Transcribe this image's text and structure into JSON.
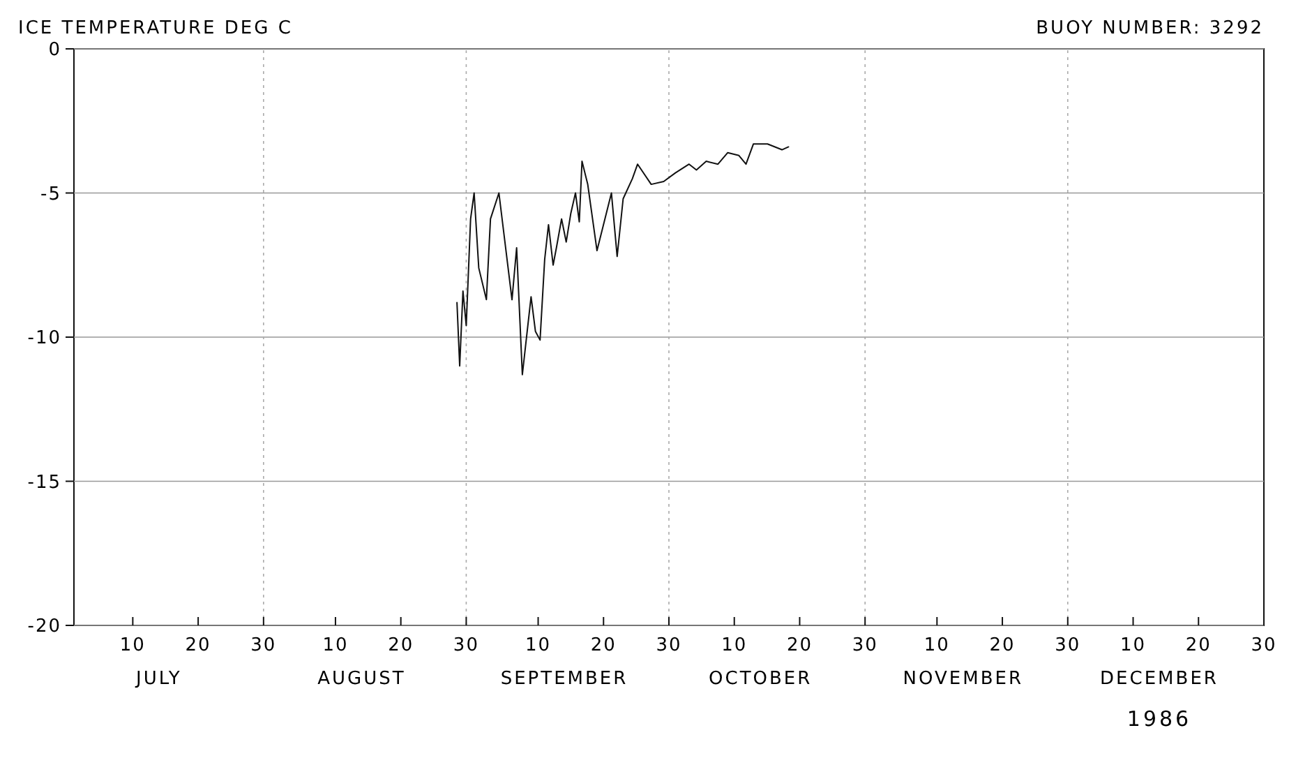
{
  "chart_data": {
    "type": "line",
    "title": "ICE TEMPERATURE DEG C",
    "subtitle": "BUOY NUMBER: 3292",
    "xlabel": "1986",
    "x": [
      "1986-08-28T14:00",
      "1986-08-29T00:00",
      "1986-08-29T12:00",
      "1986-08-30T00:00",
      "1986-08-30T16:00",
      "1986-08-31T05:00",
      "1986-08-31T22:00",
      "1986-09-02T02:00",
      "1986-09-02T17:00",
      "1986-09-04T00:00",
      "1986-09-06T00:00",
      "1986-09-06T17:00",
      "1986-09-07T14:00",
      "1986-09-08T22:00",
      "1986-09-09T14:00",
      "1986-09-10T07:00",
      "1986-09-11T00:00",
      "1986-09-11T14:00",
      "1986-09-12T07:00",
      "1986-09-12T19:00",
      "1986-09-13T14:00",
      "1986-09-14T07:00",
      "1986-09-15T00:00",
      "1986-09-15T17:00",
      "1986-09-16T07:00",
      "1986-09-16T17:00",
      "1986-09-17T14:00",
      "1986-09-19T00:00",
      "1986-09-21T05:00",
      "1986-09-22T02:00",
      "1986-09-23T00:00",
      "1986-09-24T10:00",
      "1986-09-25T05:00",
      "1986-09-27T07:00",
      "1986-09-29T05:00",
      "1986-10-01T00:00",
      "1986-10-03T02:00",
      "1986-10-04T05:00",
      "1986-10-05T17:00",
      "1986-10-07T12:00",
      "1986-10-09T00:00",
      "1986-10-10T17:00",
      "1986-10-11T19:00",
      "1986-10-12T22:00",
      "1986-10-15T02:00",
      "1986-10-17T07:00",
      "1986-10-18T07:00"
    ],
    "series": [
      {
        "color": "#111111",
        "values": [
          -8.8,
          -11.0,
          -8.4,
          -9.6,
          -5.9,
          -5.0,
          -7.6,
          -8.7,
          -5.9,
          -5.0,
          -8.7,
          -6.9,
          -11.3,
          -8.6,
          -9.8,
          -10.1,
          -7.3,
          -6.1,
          -7.5,
          -6.9,
          -5.9,
          -6.7,
          -5.7,
          -5.0,
          -6.0,
          -3.9,
          -4.7,
          -7.0,
          -5.0,
          -7.2,
          -5.2,
          -4.5,
          -4.0,
          -4.7,
          -4.6,
          -4.3,
          -4.0,
          -4.2,
          -3.9,
          -4.0,
          -3.6,
          -3.7,
          -4.0,
          -3.3,
          -3.3,
          -3.5,
          -3.4
        ]
      }
    ],
    "xlim": [
      "1986-07-01",
      "1986-12-30"
    ],
    "xticks": [
      {
        "value": "1986-07-10",
        "label": "10"
      },
      {
        "value": "1986-07-20",
        "label": "20"
      },
      {
        "value": "1986-07-30",
        "label": "30"
      },
      {
        "value": "1986-08-10",
        "label": "10"
      },
      {
        "value": "1986-08-20",
        "label": "20"
      },
      {
        "value": "1986-08-30",
        "label": "30"
      },
      {
        "value": "1986-09-10",
        "label": "10"
      },
      {
        "value": "1986-09-20",
        "label": "20"
      },
      {
        "value": "1986-09-30",
        "label": "30"
      },
      {
        "value": "1986-10-10",
        "label": "10"
      },
      {
        "value": "1986-10-20",
        "label": "20"
      },
      {
        "value": "1986-10-30",
        "label": "30"
      },
      {
        "value": "1986-11-10",
        "label": "10"
      },
      {
        "value": "1986-11-20",
        "label": "20"
      },
      {
        "value": "1986-11-30",
        "label": "30"
      },
      {
        "value": "1986-12-10",
        "label": "10"
      },
      {
        "value": "1986-12-20",
        "label": "20"
      },
      {
        "value": "1986-12-30",
        "label": "30"
      }
    ],
    "ylim": [
      -20,
      0
    ],
    "yticks": [
      -20,
      -15,
      -10,
      -5,
      0
    ],
    "grid": "y",
    "ref_lines": [
      {
        "axis": "x",
        "value": "1986-07-30",
        "color": "#aaaaaa",
        "line_style": "dotted"
      },
      {
        "axis": "x",
        "value": "1986-08-30",
        "color": "#aaaaaa",
        "line_style": "dotted"
      },
      {
        "axis": "x",
        "value": "1986-09-30",
        "color": "#aaaaaa",
        "line_style": "dotted"
      },
      {
        "axis": "x",
        "value": "1986-10-30",
        "color": "#aaaaaa",
        "line_style": "dotted"
      },
      {
        "axis": "x",
        "value": "1986-11-30",
        "color": "#aaaaaa",
        "line_style": "dotted"
      }
    ],
    "annotations": [
      "JULY",
      "AUGUST",
      "SEPTEMBER",
      "OCTOBER",
      "NOVEMBER",
      "DECEMBER"
    ]
  }
}
